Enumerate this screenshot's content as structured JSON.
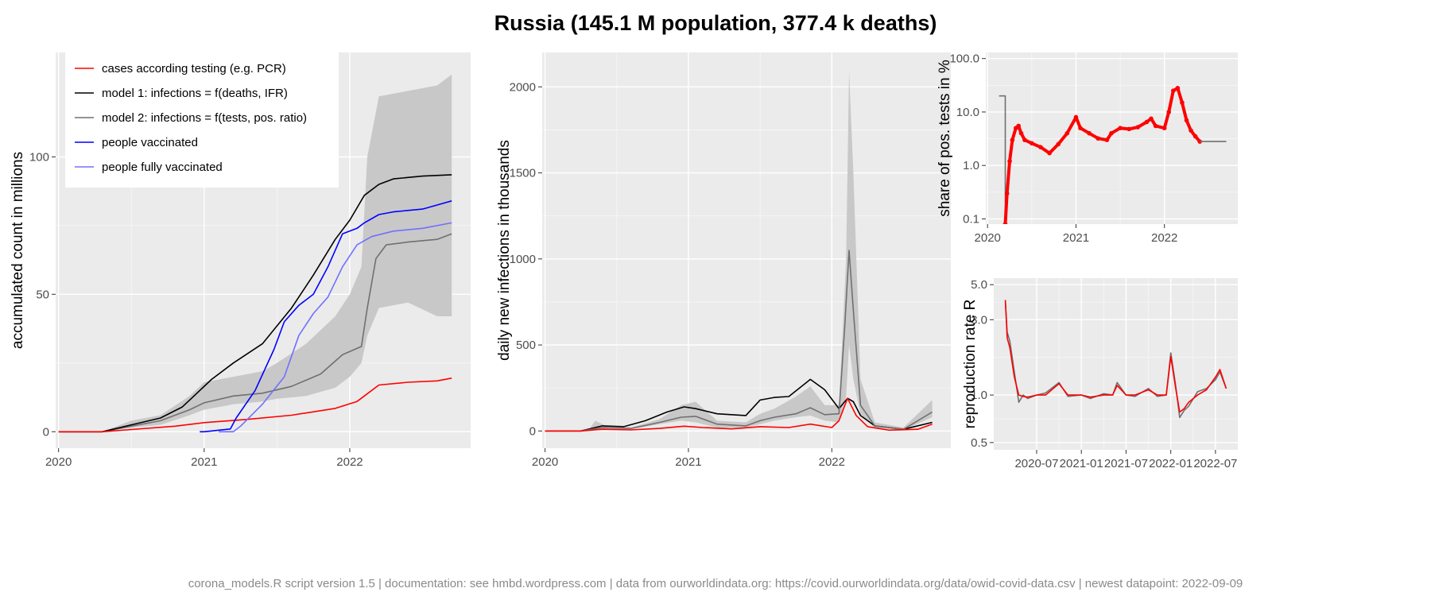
{
  "title": "Russia (145.1 M population, 377.4 k deaths)",
  "footer": "corona_models.R script version 1.5 | documentation: see hmbd.wordpress.com | data from ourworldindata.org: https://covid.ourworldindata.org/data/owid-covid-data.csv | newest datapoint: 2022-09-09",
  "colors": {
    "cases": "#ff0000",
    "model1": "#000000",
    "model2": "#707070",
    "band": "#c8c8c8",
    "vacc": "#0000ff",
    "vacc_full": "#7070ff",
    "panel_bg": "#ebebeb"
  },
  "chart_data": [
    {
      "type": "line",
      "ylabel": "accumulated count in millions",
      "xlabel": "",
      "xlim": [
        2019.98,
        2022.83
      ],
      "ylim": [
        -6,
        138
      ],
      "x_ticks": [
        2020,
        2021,
        2022
      ],
      "x_tick_labels": [
        "2020",
        "2021",
        "2022"
      ],
      "y_ticks": [
        0,
        50,
        100
      ],
      "y_tick_labels": [
        "0",
        "50",
        "100"
      ],
      "legend": {
        "placement": "top-left",
        "entries": [
          {
            "label": "cases according testing (e.g. PCR)",
            "color": "#ff0000"
          },
          {
            "label": "model 1: infections = f(deaths, IFR)",
            "color": "#000000"
          },
          {
            "label": "model 2: infections = f(tests, pos. ratio)",
            "color": "#707070"
          },
          {
            "label": "people vaccinated",
            "color": "#0000ff"
          },
          {
            "label": "people fully vaccinated",
            "color": "#7070ff"
          }
        ]
      },
      "band": {
        "x": [
          2020.0,
          2020.3,
          2020.5,
          2020.7,
          2020.9,
          2021.0,
          2021.2,
          2021.4,
          2021.5,
          2021.7,
          2021.9,
          2022.0,
          2022.08,
          2022.12,
          2022.2,
          2022.4,
          2022.6,
          2022.7
        ],
        "lower": [
          0,
          0,
          1.5,
          2.5,
          6,
          8,
          10,
          11,
          12,
          13,
          16,
          20,
          25,
          35,
          45,
          47,
          42,
          42
        ],
        "upper": [
          0,
          0,
          4,
          6,
          13,
          18,
          20,
          22,
          25,
          32,
          42,
          50,
          60,
          100,
          122,
          124,
          126,
          130
        ]
      },
      "series": [
        {
          "key": "model2",
          "x": [
            2020.0,
            2020.3,
            2020.5,
            2020.7,
            2020.9,
            2021.0,
            2021.2,
            2021.4,
            2021.6,
            2021.8,
            2021.95,
            2022.08,
            2022.12,
            2022.18,
            2022.25,
            2022.4,
            2022.6,
            2022.7
          ],
          "y": [
            0,
            0,
            2,
            4,
            8,
            10.5,
            13,
            14,
            16.5,
            21,
            28,
            31,
            45,
            63,
            68,
            69,
            70,
            72
          ]
        },
        {
          "key": "model1",
          "x": [
            2020.0,
            2020.3,
            2020.5,
            2020.7,
            2020.85,
            2020.95,
            2021.05,
            2021.2,
            2021.4,
            2021.6,
            2021.75,
            2021.9,
            2022.0,
            2022.1,
            2022.2,
            2022.3,
            2022.5,
            2022.7
          ],
          "y": [
            0,
            0,
            2.5,
            5,
            9,
            14,
            19,
            25,
            32,
            45,
            57,
            70,
            77,
            86,
            90,
            92,
            93,
            93.5
          ]
        },
        {
          "key": "cases",
          "x": [
            2020.0,
            2020.3,
            2020.5,
            2020.8,
            2021.0,
            2021.3,
            2021.6,
            2021.9,
            2022.05,
            2022.1,
            2022.2,
            2022.4,
            2022.6,
            2022.7
          ],
          "y": [
            0,
            0,
            0.8,
            2,
            3.3,
            4.5,
            6,
            8.5,
            11,
            13,
            17,
            18,
            18.5,
            19.5
          ]
        },
        {
          "key": "vacc",
          "x": [
            2020.97,
            2021.0,
            2021.18,
            2021.22,
            2021.35,
            2021.48,
            2021.55,
            2021.65,
            2021.75,
            2021.85,
            2021.95,
            2022.05,
            2022.1,
            2022.2,
            2022.3,
            2022.5,
            2022.7
          ],
          "y": [
            0,
            0,
            1,
            5,
            15,
            30,
            40,
            46,
            50,
            60,
            72,
            74,
            76,
            79,
            80,
            81,
            84
          ]
        },
        {
          "key": "vacc_full",
          "x": [
            2021.1,
            2021.2,
            2021.25,
            2021.4,
            2021.55,
            2021.65,
            2021.75,
            2021.85,
            2021.95,
            2022.05,
            2022.15,
            2022.3,
            2022.5,
            2022.7
          ],
          "y": [
            0,
            0,
            2,
            10,
            20,
            35,
            43,
            49,
            60,
            68,
            71,
            73,
            74,
            76
          ]
        }
      ]
    },
    {
      "type": "line",
      "ylabel": "daily new infections in thousands",
      "xlabel": "",
      "xlim": [
        2019.98,
        2022.83
      ],
      "ylim": [
        -100,
        2200
      ],
      "x_ticks": [
        2020,
        2021,
        2022
      ],
      "x_tick_labels": [
        "2020",
        "2021",
        "2022"
      ],
      "y_ticks": [
        0,
        500,
        1000,
        1500,
        2000
      ],
      "y_tick_labels": [
        "0",
        "500",
        "1000",
        "1500",
        "2000"
      ],
      "band": {
        "x": [
          2020.0,
          2020.3,
          2020.35,
          2020.45,
          2020.6,
          2020.8,
          2020.95,
          2021.05,
          2021.2,
          2021.4,
          2021.5,
          2021.6,
          2021.75,
          2021.85,
          2021.95,
          2022.05,
          2022.1,
          2022.12,
          2022.15,
          2022.2,
          2022.3,
          2022.5,
          2022.7
        ],
        "lower": [
          0,
          0,
          10,
          10,
          10,
          40,
          60,
          50,
          20,
          20,
          40,
          60,
          80,
          90,
          60,
          50,
          200,
          500,
          300,
          100,
          20,
          5,
          80
        ],
        "upper": [
          0,
          0,
          60,
          20,
          20,
          70,
          150,
          170,
          60,
          50,
          100,
          130,
          200,
          260,
          150,
          150,
          1000,
          2090,
          1500,
          300,
          50,
          20,
          180
        ]
      },
      "series": [
        {
          "key": "model1",
          "x": [
            2020.0,
            2020.25,
            2020.4,
            2020.55,
            2020.7,
            2020.85,
            2020.97,
            2021.05,
            2021.2,
            2021.4,
            2021.5,
            2021.6,
            2021.7,
            2021.85,
            2021.95,
            2022.05,
            2022.11,
            2022.15,
            2022.2,
            2022.3,
            2022.5,
            2022.7
          ],
          "y": [
            0,
            0,
            30,
            25,
            60,
            110,
            140,
            130,
            100,
            90,
            180,
            195,
            200,
            300,
            240,
            130,
            190,
            170,
            90,
            30,
            10,
            50
          ]
        },
        {
          "key": "model2",
          "x": [
            2020.0,
            2020.25,
            2020.4,
            2020.6,
            2020.8,
            2020.95,
            2021.05,
            2021.2,
            2021.4,
            2021.5,
            2021.6,
            2021.75,
            2021.85,
            2021.95,
            2022.05,
            2022.09,
            2022.12,
            2022.15,
            2022.2,
            2022.3,
            2022.5,
            2022.7
          ],
          "y": [
            0,
            0,
            20,
            15,
            50,
            80,
            85,
            40,
            30,
            60,
            80,
            100,
            135,
            95,
            100,
            600,
            1050,
            700,
            150,
            30,
            10,
            110
          ]
        },
        {
          "key": "cases",
          "x": [
            2020.0,
            2020.25,
            2020.4,
            2020.6,
            2020.8,
            2020.97,
            2021.1,
            2021.3,
            2021.5,
            2021.7,
            2021.85,
            2022.0,
            2022.05,
            2022.11,
            2022.17,
            2022.25,
            2022.4,
            2022.6,
            2022.7
          ],
          "y": [
            0,
            0,
            10,
            6,
            15,
            28,
            20,
            12,
            25,
            20,
            40,
            20,
            60,
            190,
            90,
            25,
            5,
            10,
            40
          ]
        }
      ]
    },
    {
      "type": "line",
      "ylabel": "share of pos. tests in %",
      "xlabel": "",
      "log_scale_y": true,
      "xlim": [
        2019.98,
        2022.83
      ],
      "ylim": [
        0.08,
        130
      ],
      "x_ticks": [
        2020,
        2021,
        2022
      ],
      "x_tick_labels": [
        "2020",
        "2021",
        "2022"
      ],
      "y_ticks": [
        0.1,
        1,
        10,
        100
      ],
      "y_tick_labels": [
        "0.1",
        "1.0",
        "10.0",
        "100.0"
      ],
      "series": [
        {
          "key": "gray_step",
          "x": [
            2020.13,
            2020.2,
            2020.2
          ],
          "y": [
            20,
            20,
            0.08
          ]
        },
        {
          "key": "positive_rate",
          "x": [
            2020.2,
            2020.22,
            2020.25,
            2020.28,
            2020.32,
            2020.35,
            2020.38,
            2020.42,
            2020.5,
            2020.6,
            2020.7,
            2020.8,
            2020.9,
            2021.0,
            2021.05,
            2021.15,
            2021.25,
            2021.35,
            2021.4,
            2021.5,
            2021.6,
            2021.7,
            2021.8,
            2021.85,
            2021.9,
            2022.0,
            2022.05,
            2022.1,
            2022.15,
            2022.2,
            2022.25,
            2022.3,
            2022.35,
            2022.4
          ],
          "y": [
            0.08,
            0.3,
            1.2,
            3,
            5,
            5.5,
            4,
            3,
            2.6,
            2.2,
            1.7,
            2.5,
            4,
            8,
            5,
            4,
            3.2,
            3,
            4,
            5,
            4.8,
            5.2,
            6.5,
            7.5,
            5.5,
            5,
            10,
            25,
            28,
            15,
            7,
            4.5,
            3.5,
            2.8
          ]
        },
        {
          "key": "gray_tail",
          "x": [
            2022.4,
            2022.7
          ],
          "y": [
            2.8,
            2.8
          ]
        }
      ]
    },
    {
      "type": "line",
      "ylabel": "reproduction rate R",
      "xlabel": "",
      "log_scale_y": true,
      "xlim": [
        2020.02,
        2022.75
      ],
      "ylim": [
        0.45,
        5.5
      ],
      "x_ticks": [
        2020.5,
        2021.0,
        2021.5,
        2022.0,
        2022.5
      ],
      "x_tick_labels": [
        "2020-07",
        "2021-01",
        "2021-07",
        "2022-01",
        "2022-07"
      ],
      "y_ticks": [
        0.5,
        1,
        3,
        5
      ],
      "y_tick_labels": [
        "0.5",
        "1.0",
        "3.0",
        "5.0"
      ],
      "series": [
        {
          "key": "gray",
          "x": [
            2020.15,
            2020.17,
            2020.2,
            2020.25,
            2020.3,
            2020.35,
            2020.4,
            2020.5,
            2020.6,
            2020.75,
            2020.85,
            2021.0,
            2021.1,
            2021.25,
            2021.35,
            2021.4,
            2021.5,
            2021.6,
            2021.75,
            2021.85,
            2021.95,
            2022.0,
            2022.05,
            2022.1,
            2022.15,
            2022.2,
            2022.3,
            2022.4,
            2022.5,
            2022.55,
            2022.62
          ],
          "y": [
            3.9,
            2.5,
            2.2,
            1.4,
            0.9,
            1.0,
            0.95,
            1.0,
            1.03,
            1.2,
            0.98,
            1.0,
            0.95,
            1.02,
            1.0,
            1.2,
            1.0,
            0.98,
            1.1,
            0.98,
            1.0,
            1.85,
            1.2,
            0.72,
            0.8,
            0.85,
            1.05,
            1.1,
            1.25,
            1.4,
            1.1
          ]
        },
        {
          "key": "red",
          "x": [
            2020.15,
            2020.17,
            2020.2,
            2020.25,
            2020.3,
            2020.35,
            2020.4,
            2020.5,
            2020.6,
            2020.75,
            2020.85,
            2021.0,
            2021.1,
            2021.25,
            2021.35,
            2021.4,
            2021.5,
            2021.6,
            2021.75,
            2021.85,
            2021.95,
            2022.0,
            2022.05,
            2022.1,
            2022.15,
            2022.2,
            2022.3,
            2022.4,
            2022.5,
            2022.55,
            2022.62
          ],
          "y": [
            4.0,
            2.3,
            2.0,
            1.3,
            1.0,
            0.98,
            0.97,
            1.0,
            1.0,
            1.18,
            1.0,
            1.0,
            0.97,
            1.0,
            1.0,
            1.15,
            1.0,
            1.0,
            1.08,
            1.0,
            1.0,
            1.75,
            1.15,
            0.78,
            0.82,
            0.9,
            1.0,
            1.08,
            1.3,
            1.45,
            1.1
          ]
        }
      ]
    }
  ]
}
